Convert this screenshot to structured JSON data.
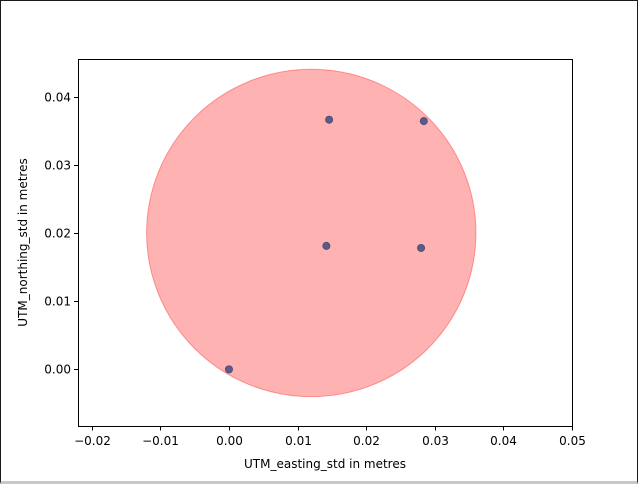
{
  "chart_data": {
    "type": "scatter",
    "title": "",
    "xlabel": "UTM_easting_std in metres",
    "ylabel": "UTM_northing_std in metres",
    "xlim": [
      -0.022,
      0.05
    ],
    "ylim": [
      -0.0083,
      0.0455
    ],
    "xticks": [
      -0.02,
      -0.01,
      0.0,
      0.01,
      0.02,
      0.03,
      0.04,
      0.05
    ],
    "xtick_labels": [
      "−0.02",
      "−0.01",
      "0.00",
      "0.01",
      "0.02",
      "0.03",
      "0.04",
      "0.05"
    ],
    "yticks": [
      0.0,
      0.01,
      0.02,
      0.03,
      0.04
    ],
    "ytick_labels": [
      "0.00",
      "0.01",
      "0.02",
      "0.03",
      "0.04"
    ],
    "grid": false,
    "series": [
      {
        "points": [
          {
            "x": 0.0,
            "y": 0.0
          },
          {
            "x": 0.0142,
            "y": 0.0181
          },
          {
            "x": 0.0146,
            "y": 0.0366
          },
          {
            "x": 0.028,
            "y": 0.0178
          },
          {
            "x": 0.0284,
            "y": 0.0364
          }
        ],
        "color": "#5b5b8a"
      }
    ],
    "annotations": [
      {
        "type": "circle",
        "center": [
          0.012,
          0.02
        ],
        "radius": 0.024,
        "fill": "#ff0000",
        "fill_opacity": 0.3
      }
    ]
  }
}
